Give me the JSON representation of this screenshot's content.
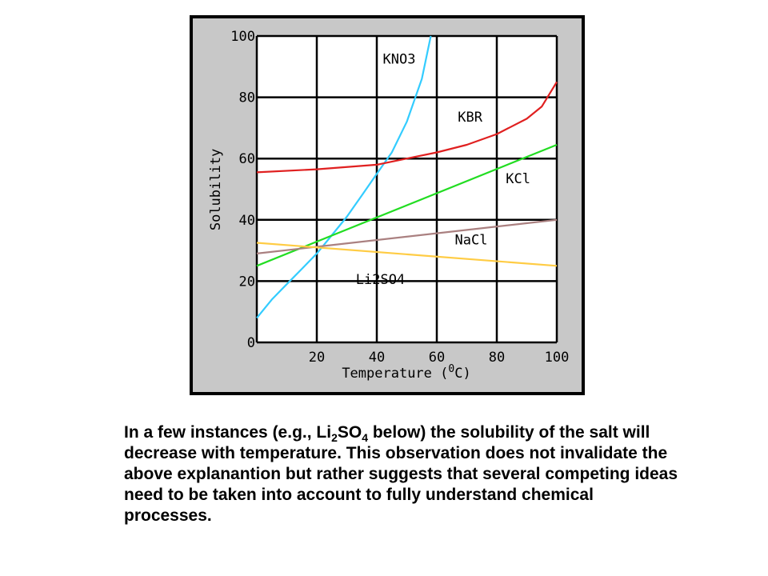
{
  "chart_data": {
    "type": "line",
    "xlabel_pre": "Temperature (",
    "xlabel_sup": "0",
    "xlabel_post": "C)",
    "ylabel": "Solubility",
    "xlim": [
      0,
      100
    ],
    "ylim": [
      0,
      100
    ],
    "x_ticks": [
      20,
      40,
      60,
      80,
      100
    ],
    "y_ticks": [
      0,
      20,
      40,
      60,
      80,
      100
    ],
    "grid": true,
    "series": [
      {
        "name": "KNO3",
        "color": "#33ccff",
        "x": [
          0,
          5,
          10,
          15,
          20,
          25,
          30,
          35,
          40,
          45,
          50,
          55,
          58
        ],
        "y": [
          8,
          14,
          19,
          24,
          29,
          35,
          41,
          48,
          55,
          62,
          72,
          86,
          100
        ],
        "label_pos": [
          42,
          91
        ]
      },
      {
        "name": "KBR",
        "color": "#e02020",
        "x": [
          0,
          20,
          40,
          50,
          60,
          70,
          80,
          90,
          95,
          100
        ],
        "y": [
          55.5,
          56.5,
          58,
          60,
          62,
          64.5,
          68,
          73,
          77,
          85
        ],
        "label_pos": [
          67,
          72
        ]
      },
      {
        "name": "KCl",
        "color": "#22dd22",
        "x": [
          0,
          100
        ],
        "y": [
          25,
          64.5
        ],
        "label_pos": [
          83,
          52
        ]
      },
      {
        "name": "NaCl",
        "color": "#aa8080",
        "x": [
          0,
          100
        ],
        "y": [
          29,
          40
        ],
        "label_pos": [
          66,
          32
        ]
      },
      {
        "name": "Li2SO4",
        "color": "#ffcc44",
        "x": [
          0,
          100
        ],
        "y": [
          32.5,
          25
        ],
        "label_pos": [
          33,
          19
        ]
      }
    ]
  },
  "caption": {
    "part1": "In a few instances (e.g., Li",
    "sub1": "2",
    "part2": "SO",
    "sub2": "4",
    "part3": " below) the solubility of the salt will decrease with temperature. This observation does not invalidate the above explanantion but rather suggests that several competing ideas need to be taken into account to fully understand chemical processes."
  }
}
